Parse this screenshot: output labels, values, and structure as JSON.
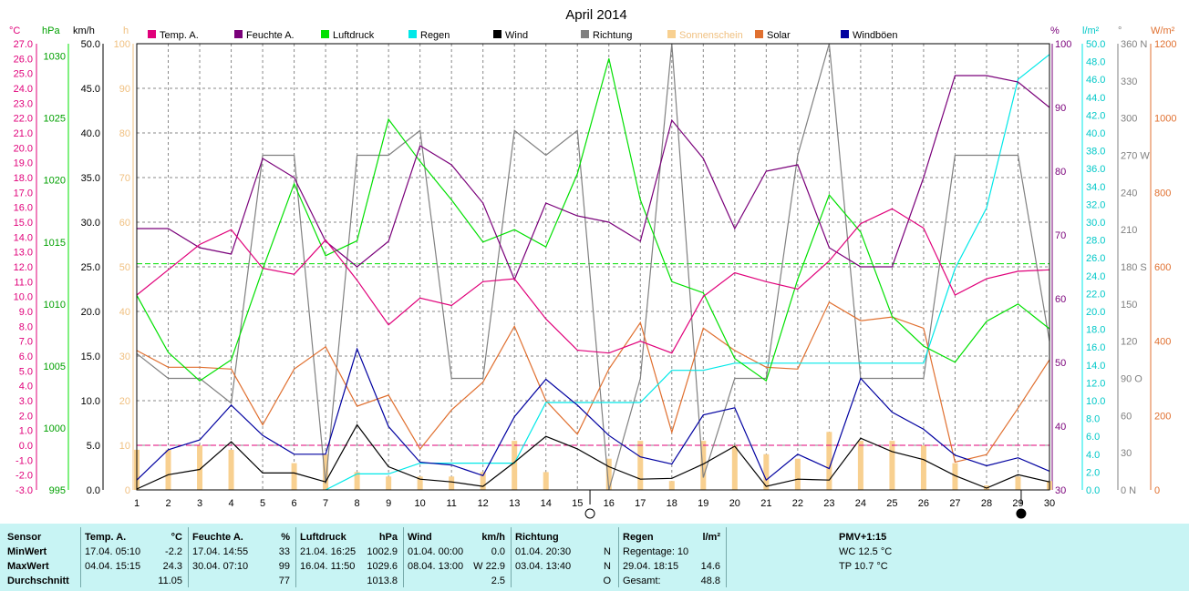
{
  "title": "April 2014",
  "legend": [
    {
      "label": "Temp. A.",
      "color": "#e0007a"
    },
    {
      "label": "Feuchte A.",
      "color": "#7a007a"
    },
    {
      "label": "Luftdruck",
      "color": "#00e000"
    },
    {
      "label": "Regen",
      "color": "#00e8e8"
    },
    {
      "label": "Wind",
      "color": "#000000"
    },
    {
      "label": "Richtung",
      "color": "#808080"
    },
    {
      "label": "Sonnenschein",
      "color": "#f8d090"
    },
    {
      "label": "Solar",
      "color": "#e07030"
    },
    {
      "label": "Windböen",
      "color": "#0000a0"
    }
  ],
  "units": {
    "temp": "°C",
    "pressure": "hPa",
    "wind": "km/h",
    "sun": "h",
    "humidity": "%",
    "rain": "l/m²",
    "direction": "°",
    "solar": "W/m²"
  },
  "axes": {
    "temp_ticks": [
      "27.0",
      "26.0",
      "25.0",
      "24.0",
      "23.0",
      "22.0",
      "21.0",
      "20.0",
      "19.0",
      "18.0",
      "17.0",
      "16.0",
      "15.0",
      "14.0",
      "13.0",
      "12.0",
      "11.0",
      "10.0",
      "9.0",
      "8.0",
      "7.0",
      "6.0",
      "5.0",
      "4.0",
      "3.0",
      "2.0",
      "1.0",
      "0.0",
      "-1.0",
      "-2.0",
      "-3.0"
    ],
    "pressure_ticks": [
      "1030",
      "1025",
      "1020",
      "1015",
      "1010",
      "1005",
      "1000",
      "995"
    ],
    "wind_ticks": [
      "50.0",
      "45.0",
      "40.0",
      "35.0",
      "30.0",
      "25.0",
      "20.0",
      "15.0",
      "10.0",
      "5.0",
      "0.0"
    ],
    "sun_ticks": [
      "100",
      "90",
      "80",
      "70",
      "60",
      "50",
      "40",
      "30",
      "20",
      "10",
      "0"
    ],
    "humidity_ticks": [
      "100",
      "90",
      "80",
      "70",
      "60",
      "50",
      "40",
      "30"
    ],
    "rain_ticks": [
      "50.0",
      "48.0",
      "46.0",
      "44.0",
      "42.0",
      "40.0",
      "38.0",
      "36.0",
      "34.0",
      "32.0",
      "30.0",
      "28.0",
      "26.0",
      "24.0",
      "22.0",
      "20.0",
      "18.0",
      "16.0",
      "14.0",
      "12.0",
      "10.0",
      "8.0",
      "6.0",
      "4.0",
      "2.0",
      "0.0"
    ],
    "direction_ticks": [
      "360 N",
      "330",
      "300",
      "270 W",
      "240",
      "210",
      "180 S",
      "150",
      "120",
      "90  O",
      "60",
      "30",
      "0   N"
    ],
    "solar_ticks": [
      "1200",
      "1000",
      "800",
      "600",
      "400",
      "200",
      "0"
    ],
    "days": [
      "1",
      "2",
      "3",
      "4",
      "5",
      "6",
      "7",
      "8",
      "9",
      "10",
      "11",
      "12",
      "13",
      "14",
      "15",
      "16",
      "17",
      "18",
      "19",
      "20",
      "21",
      "22",
      "23",
      "24",
      "25",
      "26",
      "27",
      "28",
      "29",
      "30"
    ]
  },
  "chart_data": {
    "type": "line",
    "title": "April 2014",
    "x": [
      1,
      2,
      3,
      4,
      5,
      6,
      7,
      8,
      9,
      10,
      11,
      12,
      13,
      14,
      15,
      16,
      17,
      18,
      19,
      20,
      21,
      22,
      23,
      24,
      25,
      26,
      27,
      28,
      29,
      30
    ],
    "series": [
      {
        "name": "Temp. A.",
        "unit": "°C",
        "color": "#e0007a",
        "axis": "temp",
        "values": [
          10.1,
          11.8,
          13.5,
          14.5,
          11.9,
          11.5,
          13.8,
          11.1,
          8.1,
          9.9,
          9.4,
          11.0,
          11.2,
          8.5,
          6.4,
          6.2,
          7.0,
          6.2,
          10.0,
          11.6,
          11.0,
          10.5,
          12.4,
          14.9,
          15.9,
          14.6,
          10.1,
          11.2,
          11.7,
          11.8
        ]
      },
      {
        "name": "Feuchte A.",
        "unit": "%",
        "color": "#7a007a",
        "axis": "humidity",
        "values": [
          71,
          71,
          68,
          67,
          82,
          79,
          69,
          65,
          69,
          84,
          81,
          75,
          63,
          75,
          73,
          72,
          69,
          88,
          82,
          71,
          80,
          81,
          68,
          65,
          65,
          79,
          95,
          95,
          94,
          90
        ]
      },
      {
        "name": "Luftdruck",
        "unit": "hPa",
        "color": "#00e000",
        "axis": "pressure",
        "values": [
          1010.7,
          1006.1,
          1003.8,
          1005.5,
          1012.8,
          1019.7,
          1013.9,
          1015.1,
          1024.9,
          1021.5,
          1018.4,
          1015.0,
          1016.0,
          1014.6,
          1020.5,
          1029.8,
          1018.4,
          1011.8,
          1010.9,
          1005.6,
          1003.8,
          1012.0,
          1018.8,
          1015.8,
          1009.0,
          1006.6,
          1005.3,
          1008.6,
          1010.0,
          1008.0
        ]
      },
      {
        "name": "Regen",
        "unit": "l/m²",
        "color": "#00e8e8",
        "axis": "rain",
        "values": [
          null,
          null,
          null,
          null,
          null,
          null,
          0.0,
          1.8,
          1.8,
          3.0,
          3.0,
          3.0,
          3.0,
          9.8,
          9.8,
          9.8,
          9.8,
          13.4,
          13.4,
          14.2,
          14.2,
          14.2,
          14.2,
          14.2,
          14.2,
          14.2,
          24.8,
          31.6,
          46.0,
          48.8
        ]
      },
      {
        "name": "Wind",
        "unit": "km/h",
        "color": "#000000",
        "axis": "wind",
        "values": [
          0.1,
          1.7,
          2.3,
          5.4,
          1.9,
          1.9,
          0.9,
          7.3,
          2.6,
          1.2,
          0.9,
          0.4,
          3.1,
          6.0,
          4.6,
          2.6,
          1.2,
          1.3,
          2.9,
          4.9,
          0.4,
          1.2,
          1.1,
          5.8,
          4.3,
          3.4,
          1.6,
          0.2,
          1.7,
          0.9
        ]
      },
      {
        "name": "Richtung",
        "unit": "°",
        "color": "#808080",
        "axis": "direction",
        "values": [
          110,
          90,
          90,
          70,
          270,
          270,
          5,
          270,
          270,
          290,
          90,
          90,
          290,
          270,
          290,
          0,
          90,
          360,
          10,
          90,
          90,
          270,
          360,
          90,
          90,
          90,
          270,
          270,
          270,
          120
        ]
      },
      {
        "name": "Solar",
        "unit": "W/m²",
        "color": "#e07030",
        "axis": "solar",
        "values": [
          375,
          330,
          330,
          325,
          175,
          325,
          385,
          225,
          255,
          110,
          215,
          290,
          440,
          240,
          150,
          325,
          450,
          155,
          435,
          375,
          330,
          325,
          505,
          455,
          465,
          435,
          75,
          95,
          220,
          350
        ]
      },
      {
        "name": "Windböen",
        "unit": "km/h",
        "color": "#0000a0",
        "axis": "wind",
        "values": [
          1.1,
          4.5,
          5.6,
          9.5,
          6.1,
          4.0,
          4.0,
          15.8,
          7.1,
          3.1,
          2.8,
          1.6,
          8.2,
          12.4,
          9.5,
          6.1,
          3.7,
          2.9,
          8.4,
          9.2,
          1.1,
          4.0,
          2.4,
          12.5,
          8.7,
          6.8,
          3.9,
          2.7,
          3.6,
          2.1
        ]
      },
      {
        "name": "Sonnenschein",
        "unit": "h",
        "color": "#f8d090",
        "axis": "sun",
        "type": "bar",
        "values": [
          9,
          9,
          10,
          9,
          0,
          6,
          8,
          4,
          3,
          3,
          3,
          4,
          11,
          4,
          0,
          7,
          11,
          2,
          11,
          10,
          8,
          7,
          13,
          11,
          11,
          10,
          6,
          1,
          3,
          2
        ]
      }
    ],
    "axis_ranges": {
      "temp": [
        -3.0,
        27.0
      ],
      "pressure": [
        995,
        1031
      ],
      "wind": [
        0.0,
        50.0
      ],
      "sun": [
        0,
        100
      ],
      "humidity": [
        30,
        100
      ],
      "rain": [
        0.0,
        50.0
      ],
      "direction": [
        0,
        360
      ],
      "solar": [
        0,
        1200
      ]
    },
    "reference_lines": [
      {
        "axis": "temp",
        "value": 0.0,
        "color": "#e0007a"
      },
      {
        "axis": "pressure",
        "value": 1013.25,
        "color": "#00e000"
      }
    ],
    "moon_markers": [
      {
        "day": 15.4,
        "phase": "full"
      },
      {
        "day": 29.1,
        "phase": "new"
      }
    ],
    "grid": true,
    "legend_placement": "top"
  },
  "stats": {
    "headers": {
      "sensor": "Sensor",
      "temp": "Temp. A.",
      "temp_unit": "°C",
      "hum": "Feuchte A.",
      "hum_unit": "%",
      "press": "Luftdruck",
      "press_unit": "hPa",
      "wind": "Wind",
      "wind_unit": "km/h",
      "dir": "Richtung",
      "rain": "Regen",
      "rain_unit": "l/m²",
      "pmv": "PMV+1:15"
    },
    "labels": [
      "MinWert",
      "MaxWert",
      "Durchschnitt"
    ],
    "temp": [
      {
        "when": "17.04.  05:10",
        "val": "-2.2"
      },
      {
        "when": "04.04.  15:15",
        "val": "24.3"
      },
      {
        "when": "",
        "val": "11.05"
      }
    ],
    "hum": [
      {
        "when": "17.04.  14:55",
        "val": "33"
      },
      {
        "when": "30.04.  07:10",
        "val": "99"
      },
      {
        "when": "",
        "val": "77"
      }
    ],
    "press": [
      {
        "when": "21.04.  16:25",
        "val": "1002.9"
      },
      {
        "when": "16.04.  11:50",
        "val": "1029.6"
      },
      {
        "when": "",
        "val": "1013.8"
      }
    ],
    "wind": [
      {
        "when": "01.04.  00:00",
        "val": "0.0"
      },
      {
        "when": "08.04.  13:00",
        "val": "W 22.9"
      },
      {
        "when": "",
        "val": "2.5"
      }
    ],
    "dir": [
      {
        "when": "01.04.  20:30",
        "val": "N"
      },
      {
        "when": "03.04.  13:40",
        "val": "N"
      },
      {
        "when": "",
        "val": "O"
      }
    ],
    "rain": [
      {
        "label": "Regentage: 10",
        "val": ""
      },
      {
        "label": "29.04.  18:15",
        "val": "14.6"
      },
      {
        "label": "Gesamt:",
        "val": "48.8"
      }
    ],
    "pmv": [
      "WC 12.5 °C",
      "TP 10.7 °C"
    ]
  }
}
